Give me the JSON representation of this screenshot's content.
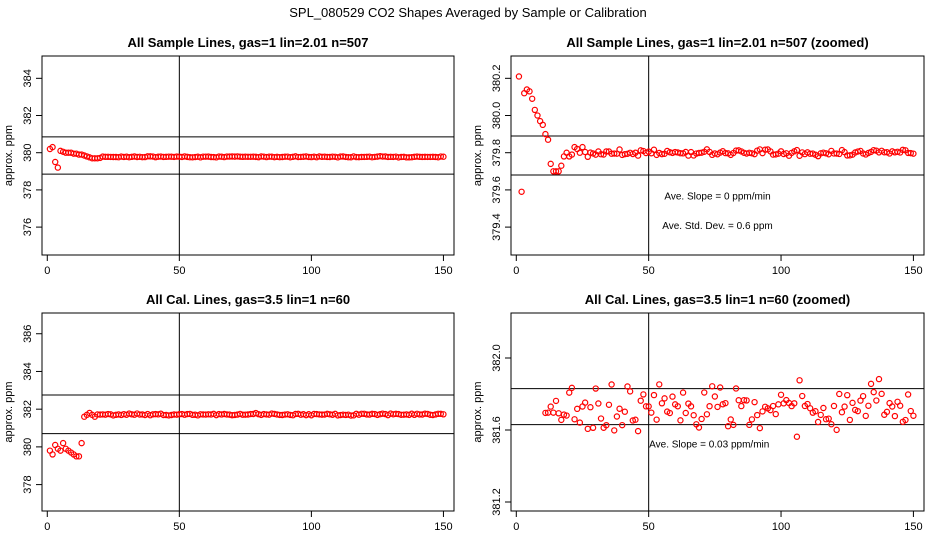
{
  "figure": {
    "title": "SPL_080529  CO2 Shapes Averaged by Sample or Calibration"
  },
  "chart_data": [
    {
      "type": "scatter",
      "title": "All Sample Lines, gas=1 lin=2.01 n=507",
      "xlabel": "",
      "ylabel": "approx. ppm",
      "xlim": [
        -2,
        154
      ],
      "ylim": [
        374.5,
        385.2
      ],
      "xticks": [
        "0",
        "50",
        "100",
        "150"
      ],
      "yticks": [
        "376",
        "378",
        "380",
        "382",
        "384"
      ],
      "ytick_values": [
        376,
        378,
        380,
        382,
        384
      ],
      "hlines": [
        380.85,
        378.85
      ],
      "vline": 50,
      "annotations": [],
      "color": "#ff0000",
      "points": {
        "x": [
          1,
          2,
          3,
          4,
          5,
          6,
          7,
          8,
          9,
          10,
          11,
          12,
          13,
          14,
          15,
          16,
          17,
          18,
          19,
          20
        ],
        "y": [
          380.2,
          380.3,
          379.5,
          379.2,
          380.1,
          380.05,
          380.0,
          380.0,
          380.0,
          379.95,
          379.95,
          379.9,
          379.9,
          379.85,
          379.8,
          379.75,
          379.7,
          379.7,
          379.7,
          379.72
        ]
      },
      "tail": {
        "x_start": 21,
        "x_end": 150,
        "base": 379.78,
        "amp": 0.04
      }
    },
    {
      "type": "scatter",
      "title": "All Sample Lines, gas=1 lin=2.01 n=507 (zoomed)",
      "xlabel": "",
      "ylabel": "approx. ppm",
      "xlim": [
        -2,
        154
      ],
      "ylim": [
        379.25,
        380.32
      ],
      "xticks": [
        "0",
        "50",
        "100",
        "150"
      ],
      "yticks": [
        "379.4",
        "379.6",
        "379.8",
        "380.0",
        "380.2"
      ],
      "ytick_values": [
        379.4,
        379.6,
        379.8,
        380.0,
        380.2
      ],
      "hlines": [
        379.89,
        379.68
      ],
      "vline": 50,
      "annotations": [
        "Ave. Slope =  0  ppm/min",
        "Ave. Std. Dev. =  0.6  ppm"
      ],
      "color": "#ff0000",
      "points": {
        "x": [
          1,
          2,
          3,
          4,
          5,
          6,
          7,
          8,
          9,
          10,
          11,
          12,
          13,
          14,
          15,
          16,
          17,
          18,
          19,
          20,
          21,
          22,
          23,
          24,
          25
        ],
        "y": [
          380.21,
          379.59,
          380.12,
          380.14,
          380.13,
          380.09,
          380.03,
          380.0,
          379.97,
          379.95,
          379.9,
          379.87,
          379.74,
          379.7,
          379.7,
          379.7,
          379.73,
          379.78,
          379.8,
          379.78,
          379.79,
          379.83,
          379.82,
          379.8,
          379.83
        ]
      },
      "tail": {
        "x_start": 26,
        "x_end": 150,
        "base": 379.8,
        "amp": 0.03
      }
    },
    {
      "type": "scatter",
      "title": "All Cal. Lines, gas=3.5 lin=1 n=60",
      "xlabel": "",
      "ylabel": "approx. ppm",
      "xlim": [
        -2,
        154
      ],
      "ylim": [
        376.6,
        387.1
      ],
      "xticks": [
        "0",
        "50",
        "100",
        "150"
      ],
      "yticks": [
        "378",
        "380",
        "382",
        "384",
        "386"
      ],
      "ytick_values": [
        378,
        380,
        382,
        384,
        386
      ],
      "hlines": [
        382.75,
        380.7
      ],
      "vline": 50,
      "annotations": [],
      "color": "#ff0000",
      "points": {
        "x": [
          1,
          2,
          3,
          4,
          5,
          6,
          7,
          8,
          9,
          10,
          11,
          12,
          13,
          14,
          15,
          16,
          17,
          18
        ],
        "y": [
          379.8,
          379.6,
          380.1,
          379.9,
          379.8,
          380.2,
          379.9,
          379.8,
          379.7,
          379.6,
          379.5,
          379.5,
          380.2,
          381.6,
          381.7,
          381.8,
          381.7,
          381.6
        ]
      },
      "tail": {
        "x_start": 19,
        "x_end": 150,
        "base": 381.72,
        "amp": 0.08
      }
    },
    {
      "type": "scatter",
      "title": "All Cal. Lines, gas=3.5 lin=1 n=60 (zoomed)",
      "xlabel": "",
      "ylabel": "approx. ppm",
      "xlim": [
        -2,
        154
      ],
      "ylim": [
        381.15,
        382.25
      ],
      "xticks": [
        "0",
        "50",
        "100",
        "150"
      ],
      "yticks": [
        "381.2",
        "381.6",
        "382.0"
      ],
      "ytick_values": [
        381.2,
        381.6,
        382.0
      ],
      "hlines": [
        381.83,
        381.63
      ],
      "vline": 50,
      "annotations": [
        "Ave. Slope =  0.03  ppm/min"
      ],
      "color": "#ff0000",
      "points": {
        "x": [],
        "y": []
      },
      "tail": {
        "x_start": 11,
        "x_end": 150,
        "base": 381.72,
        "amp": 0.2
      }
    }
  ]
}
